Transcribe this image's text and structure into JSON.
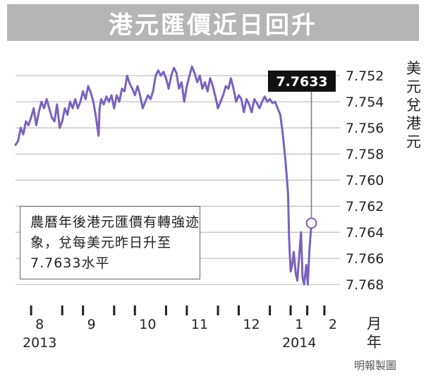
{
  "title": "港元匯價近日回升",
  "y_unit_label": "美元兌港元",
  "x_unit_month": "月",
  "x_unit_year": "年",
  "credit": "明報製圖",
  "annotation": {
    "lines": [
      "農曆年後港元匯價有轉強迹",
      "象，兌每美元昨日升至",
      "7.7633水平"
    ]
  },
  "callout_value": "7.7633",
  "colors": {
    "line": "#7b61c0",
    "title_bg": "#b5b5b5",
    "grid": "#bfbfbf",
    "callout_bg": "#111111"
  },
  "chart_data": {
    "type": "line",
    "title": "港元匯價近日回升",
    "ylabel": "美元兌港元",
    "xlabel": "月 / 年",
    "y_inverted": true,
    "ylim": [
      7.7515,
      7.7688
    ],
    "y_ticks": [
      "7.752",
      "7.754",
      "7.756",
      "7.758",
      "7.760",
      "7.762",
      "7.764",
      "7.766",
      "7.768"
    ],
    "x_ticks": [
      {
        "label": "8",
        "year": "2013",
        "x": 0.3
      },
      {
        "label": "9",
        "x": 1.3
      },
      {
        "label": "10",
        "x": 2.3
      },
      {
        "label": "11",
        "x": 3.3
      },
      {
        "label": "12",
        "x": 4.3
      },
      {
        "label": "1",
        "year": "2014",
        "x": 5.3
      },
      {
        "label": "2",
        "x": 5.95
      }
    ],
    "x_range": [
      0,
      6.25
    ],
    "grid": true,
    "series": [
      {
        "points": [
          [
            0.0,
            7.7573
          ],
          [
            0.05,
            7.757
          ],
          [
            0.1,
            7.756
          ],
          [
            0.15,
            7.7565
          ],
          [
            0.2,
            7.7555
          ],
          [
            0.25,
            7.7558
          ],
          [
            0.3,
            7.7552
          ],
          [
            0.35,
            7.7545
          ],
          [
            0.4,
            7.7558
          ],
          [
            0.45,
            7.7548
          ],
          [
            0.5,
            7.754
          ],
          [
            0.55,
            7.7545
          ],
          [
            0.6,
            7.7538
          ],
          [
            0.65,
            7.7545
          ],
          [
            0.7,
            7.7552
          ],
          [
            0.75,
            7.7555
          ],
          [
            0.8,
            7.7542
          ],
          [
            0.85,
            7.756
          ],
          [
            0.9,
            7.7555
          ],
          [
            0.95,
            7.7545
          ],
          [
            1.0,
            7.755
          ],
          [
            1.05,
            7.754
          ],
          [
            1.1,
            7.7545
          ],
          [
            1.15,
            7.7538
          ],
          [
            1.2,
            7.7545
          ],
          [
            1.25,
            7.754
          ],
          [
            1.3,
            7.7532
          ],
          [
            1.35,
            7.7538
          ],
          [
            1.4,
            7.7528
          ],
          [
            1.45,
            7.7533
          ],
          [
            1.5,
            7.754
          ],
          [
            1.55,
            7.7552
          ],
          [
            1.6,
            7.7566
          ],
          [
            1.62,
            7.7545
          ],
          [
            1.65,
            7.7538
          ],
          [
            1.7,
            7.7542
          ],
          [
            1.75,
            7.7536
          ],
          [
            1.8,
            7.754
          ],
          [
            1.85,
            7.7535
          ],
          [
            1.9,
            7.7545
          ],
          [
            1.95,
            7.7535
          ],
          [
            2.0,
            7.754
          ],
          [
            2.05,
            7.753
          ],
          [
            2.1,
            7.7532
          ],
          [
            2.15,
            7.752
          ],
          [
            2.2,
            7.7526
          ],
          [
            2.25,
            7.753
          ],
          [
            2.3,
            7.7535
          ],
          [
            2.35,
            7.7528
          ],
          [
            2.4,
            7.7535
          ],
          [
            2.45,
            7.7545
          ],
          [
            2.5,
            7.754
          ],
          [
            2.55,
            7.7535
          ],
          [
            2.6,
            7.7538
          ],
          [
            2.65,
            7.7532
          ],
          [
            2.7,
            7.752
          ],
          [
            2.75,
            7.7516
          ],
          [
            2.8,
            7.752
          ],
          [
            2.85,
            7.7517
          ],
          [
            2.9,
            7.7522
          ],
          [
            2.95,
            7.753
          ],
          [
            3.0,
            7.752
          ],
          [
            3.05,
            7.7514
          ],
          [
            3.1,
            7.7518
          ],
          [
            3.15,
            7.753
          ],
          [
            3.2,
            7.7525
          ],
          [
            3.25,
            7.754
          ],
          [
            3.3,
            7.7528
          ],
          [
            3.35,
            7.752
          ],
          [
            3.4,
            7.7513
          ],
          [
            3.45,
            7.7518
          ],
          [
            3.5,
            7.7525
          ],
          [
            3.55,
            7.752
          ],
          [
            3.6,
            7.753
          ],
          [
            3.65,
            7.7525
          ],
          [
            3.7,
            7.7532
          ],
          [
            3.75,
            7.7522
          ],
          [
            3.8,
            7.7528
          ],
          [
            3.85,
            7.7536
          ],
          [
            3.9,
            7.7545
          ],
          [
            3.95,
            7.754
          ],
          [
            4.0,
            7.7535
          ],
          [
            4.05,
            7.7528
          ],
          [
            4.1,
            7.753
          ],
          [
            4.15,
            7.7522
          ],
          [
            4.2,
            7.753
          ],
          [
            4.25,
            7.754
          ],
          [
            4.3,
            7.7535
          ],
          [
            4.35,
            7.7538
          ],
          [
            4.4,
            7.7548
          ],
          [
            4.45,
            7.7538
          ],
          [
            4.5,
            7.7542
          ],
          [
            4.55,
            7.7548
          ],
          [
            4.6,
            7.7538
          ],
          [
            4.65,
            7.7541
          ],
          [
            4.7,
            7.7545
          ],
          [
            4.75,
            7.754
          ],
          [
            4.8,
            7.7536
          ],
          [
            4.85,
            7.754
          ],
          [
            4.9,
            7.7538
          ],
          [
            4.95,
            7.7541
          ],
          [
            5.0,
            7.754
          ],
          [
            5.05,
            7.7545
          ],
          [
            5.1,
            7.755
          ],
          [
            5.15,
            7.7565
          ],
          [
            5.2,
            7.7585
          ],
          [
            5.25,
            7.761
          ],
          [
            5.27,
            7.7645
          ],
          [
            5.3,
            7.767
          ],
          [
            5.33,
            7.7665
          ],
          [
            5.36,
            7.7655
          ],
          [
            5.4,
            7.7672
          ],
          [
            5.43,
            7.7677
          ],
          [
            5.46,
            7.766
          ],
          [
            5.5,
            7.764
          ],
          [
            5.53,
            7.7675
          ],
          [
            5.56,
            7.768
          ],
          [
            5.6,
            7.7665
          ],
          [
            5.63,
            7.768
          ],
          [
            5.66,
            7.7655
          ],
          [
            5.7,
            7.7633
          ]
        ]
      }
    ],
    "annotations": [
      {
        "text": "7.7633",
        "x": 5.7,
        "y": 7.7633,
        "marker": "circle"
      }
    ]
  }
}
